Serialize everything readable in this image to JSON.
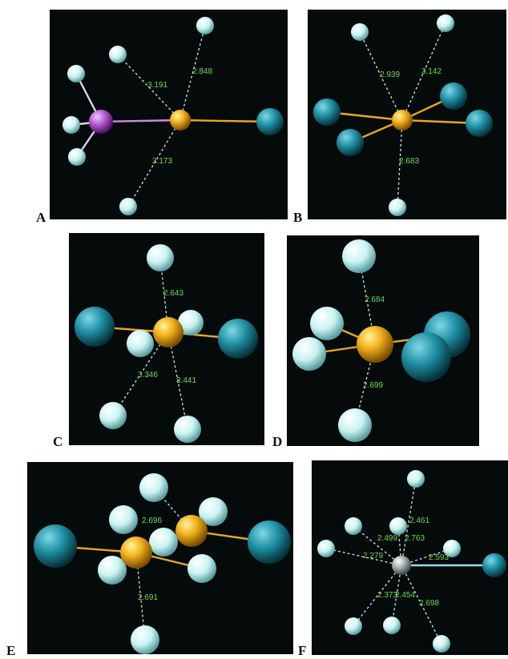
{
  "panel_labels": {
    "A": "A",
    "B": "B",
    "C": "C",
    "D": "D",
    "E": "E",
    "F": "F"
  },
  "distances": {
    "A": [
      "3.191",
      "2.848",
      "3.173"
    ],
    "B": [
      "2.939",
      "3.142",
      "2.683"
    ],
    "C": [
      "2.643",
      "3.346",
      "3.441"
    ],
    "D": [
      "2.684",
      "2.699"
    ],
    "E": [
      "2.696",
      "2.691"
    ],
    "F": [
      "2.461",
      "2.499",
      "2.763",
      "2.279",
      "2.593",
      "2.373",
      "2.454",
      "2.698"
    ]
  },
  "colors": {
    "background": "#050a0a",
    "gold_atom": "#f2b21c",
    "cyan_large_atom": "#1f8fa3",
    "cyan_small_atom": "#c9f3f2",
    "purple_atom": "#b057c8",
    "gray_atom": "#9aa3a3",
    "distance_label": "#6fdc5a"
  }
}
